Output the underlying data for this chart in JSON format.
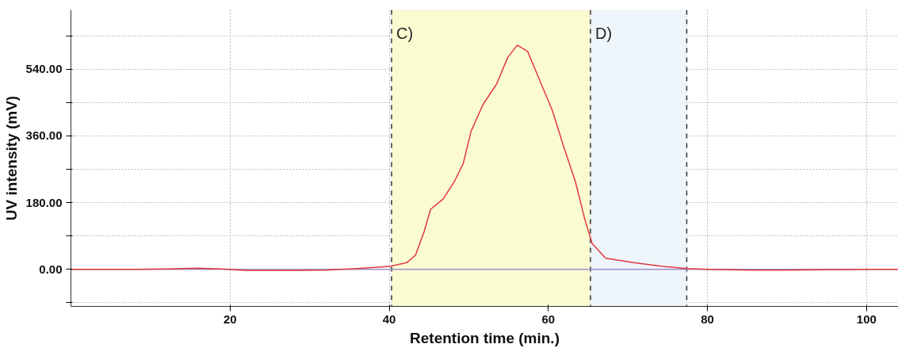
{
  "chart_data": {
    "type": "line",
    "xlabel": "Retention time (min.)",
    "ylabel": "UV intensity (mV)",
    "xlim": [
      0,
      104
    ],
    "ylim": [
      -100,
      700
    ],
    "xticks": [
      20,
      40,
      60,
      80,
      100
    ],
    "yticks": [
      {
        "value": -90,
        "label": null
      },
      {
        "value": 0,
        "label": "0.00"
      },
      {
        "value": 90,
        "label": null
      },
      {
        "value": 180,
        "label": "180.00"
      },
      {
        "value": 270,
        "label": null
      },
      {
        "value": 360,
        "label": "360.00"
      },
      {
        "value": 450,
        "label": null
      },
      {
        "value": 540,
        "label": "540.00"
      },
      {
        "value": 630,
        "label": null
      }
    ],
    "grid": true,
    "line_style": "solid",
    "marker": "none",
    "series": [
      {
        "color": "#e0393f",
        "x": [
          0,
          8,
          12,
          16,
          19,
          22,
          28,
          32,
          36,
          40.1,
          42.2,
          43.3,
          44.4,
          45.2,
          46.8,
          48.2,
          49.3,
          50.3,
          51.8,
          53.5,
          54.9,
          56.1,
          57.4,
          58.8,
          60.5,
          61.9,
          63.4,
          64.6,
          65.5,
          67.2,
          70.7,
          74.3,
          77.4,
          80,
          85,
          90,
          95,
          100,
          104
        ],
        "values": [
          0,
          0,
          1,
          3,
          1,
          -3,
          -3,
          -2,
          2,
          8,
          18,
          38,
          102,
          162,
          190,
          237,
          285,
          373,
          445,
          500,
          572,
          605,
          588,
          516,
          429,
          333,
          237,
          134,
          70,
          30,
          18,
          8,
          2,
          0,
          -2,
          -2,
          -1,
          0,
          0
        ]
      }
    ],
    "bands": [
      {
        "axis": "x",
        "from": 40.3,
        "to": 65.3,
        "label": "C)",
        "color": "#fbfbd2"
      },
      {
        "axis": "x",
        "from": 65.3,
        "to": 77.4,
        "label": "D)",
        "color": "#eef6fb"
      }
    ],
    "ref_lines": [
      {
        "axis": "x",
        "value": 40.3,
        "label": null,
        "color": "#333333",
        "line_style": "dashed"
      },
      {
        "axis": "x",
        "value": 65.3,
        "label": null,
        "color": "#333333",
        "line_style": "dashed"
      },
      {
        "axis": "x",
        "value": 77.4,
        "label": null,
        "color": "#333333",
        "line_style": "dashed"
      },
      {
        "axis": "y",
        "value": 0,
        "label": null,
        "color": "#9a90c8",
        "line_style": "solid"
      }
    ]
  }
}
